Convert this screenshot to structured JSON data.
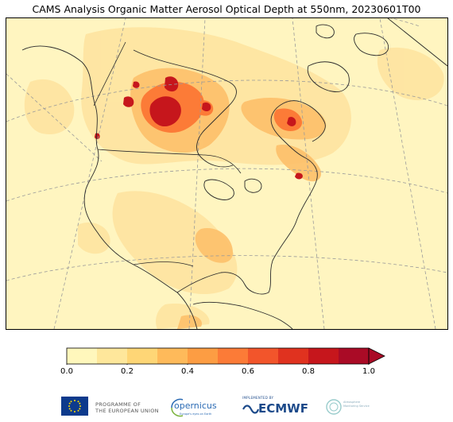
{
  "title": "CAMS Analysis Organic Matter Aerosol Optical Depth at 550nm, 20230601T00",
  "colorbar": {
    "ticks": [
      "0.0",
      "0.2",
      "0.4",
      "0.6",
      "0.8",
      "1.0"
    ],
    "bounds": [
      0.0,
      0.1,
      0.2,
      0.3,
      0.4,
      0.5,
      0.6,
      0.7,
      0.8,
      0.9,
      1.0
    ],
    "colors": [
      "#fff7bc",
      "#fee79b",
      "#fed676",
      "#feba5a",
      "#fd9d43",
      "#fc7b37",
      "#f2552b",
      "#e0321f",
      "#c6161c",
      "#aa0b26"
    ],
    "extend": "max"
  },
  "map": {
    "land_color": "#fff5c0",
    "coastline_color": "#2b2b2b",
    "gridline_color": "#9a9a9a",
    "gridline_style": "dashed"
  },
  "logos": {
    "eu_line1": "PROGRAMME OF",
    "eu_line2": "THE EUROPEAN UNION",
    "copernicus": "opernicus",
    "copernicus_tagline": "Europe's eyes on Earth",
    "ecmwf_implemented": "IMPLEMENTED BY",
    "ecmwf": "ECMWF",
    "cams_line1": "Atmosphere",
    "cams_line2": "Monitoring Service"
  }
}
